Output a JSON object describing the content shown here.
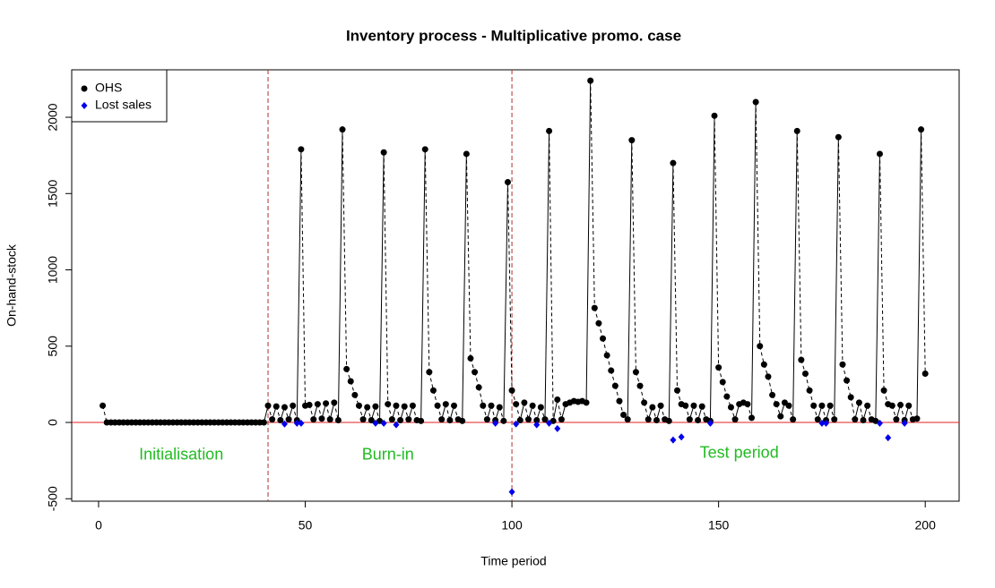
{
  "chart_data": {
    "type": "scatter-line",
    "title": "Inventory process - Multiplicative promo. case",
    "x_label": "Time period",
    "y_label": "On-hand-stock",
    "xlim": [
      -6.5,
      208.2
    ],
    "ylim": [
      -516,
      2311
    ],
    "xticks": [
      0,
      50,
      100,
      150,
      200
    ],
    "yticks": [
      -500,
      0,
      500,
      1000,
      1500,
      2000
    ],
    "hline": 0,
    "vlines": [
      41,
      100
    ],
    "legend_position": "top-left",
    "annotations": [
      {
        "text": "Initialisation",
        "x": 20,
        "y": -215,
        "color": "#22bb22"
      },
      {
        "text": "Burn-in",
        "x": 70,
        "y": -215,
        "color": "#22bb22"
      },
      {
        "text": "Test period",
        "x": 155,
        "y": -205,
        "color": "#22bb22"
      }
    ],
    "series": [
      {
        "name": "OHS",
        "color": "#000000",
        "x": [
          1,
          2,
          3,
          4,
          5,
          6,
          7,
          8,
          9,
          10,
          11,
          12,
          13,
          14,
          15,
          16,
          17,
          18,
          19,
          20,
          21,
          22,
          23,
          24,
          25,
          26,
          27,
          28,
          29,
          30,
          31,
          32,
          33,
          34,
          35,
          36,
          37,
          38,
          39,
          40,
          41,
          42,
          43,
          44,
          45,
          46,
          47,
          48,
          49,
          50,
          51,
          52,
          53,
          54,
          55,
          56,
          57,
          58,
          59,
          60,
          61,
          62,
          63,
          64,
          65,
          66,
          67,
          68,
          69,
          70,
          71,
          72,
          73,
          74,
          75,
          76,
          77,
          78,
          79,
          80,
          81,
          82,
          83,
          84,
          85,
          86,
          87,
          88,
          89,
          90,
          91,
          92,
          93,
          94,
          95,
          96,
          97,
          98,
          99,
          100,
          101,
          102,
          103,
          104,
          105,
          106,
          107,
          108,
          109,
          110,
          111,
          112,
          113,
          114,
          115,
          116,
          117,
          118,
          119,
          120,
          121,
          122,
          123,
          124,
          125,
          126,
          127,
          128,
          129,
          130,
          131,
          132,
          133,
          134,
          135,
          136,
          137,
          138,
          139,
          140,
          141,
          142,
          143,
          144,
          145,
          146,
          147,
          148,
          149,
          150,
          151,
          152,
          153,
          154,
          155,
          156,
          157,
          158,
          159,
          160,
          161,
          162,
          163,
          164,
          165,
          166,
          167,
          168,
          169,
          170,
          171,
          172,
          173,
          174,
          175,
          176,
          177,
          178,
          179,
          180,
          181,
          182,
          183,
          184,
          185,
          186,
          187,
          188,
          189,
          190,
          191,
          192,
          193,
          194,
          195,
          196,
          197,
          198,
          199,
          200
        ],
        "values": [
          110,
          0,
          0,
          0,
          0,
          0,
          0,
          0,
          0,
          0,
          0,
          0,
          0,
          0,
          0,
          0,
          0,
          0,
          0,
          0,
          0,
          0,
          0,
          0,
          0,
          0,
          0,
          0,
          0,
          0,
          0,
          0,
          0,
          0,
          0,
          0,
          0,
          0,
          0,
          0,
          110,
          20,
          105,
          15,
          100,
          20,
          110,
          15,
          1790,
          110,
          115,
          20,
          120,
          25,
          125,
          20,
          130,
          15,
          1920,
          350,
          270,
          180,
          110,
          20,
          100,
          15,
          105,
          10,
          1770,
          120,
          20,
          110,
          15,
          105,
          20,
          110,
          15,
          10,
          1790,
          330,
          210,
          110,
          20,
          120,
          15,
          110,
          20,
          10,
          1760,
          420,
          330,
          230,
          110,
          20,
          110,
          15,
          100,
          10,
          1575,
          210,
          120,
          15,
          130,
          20,
          110,
          15,
          100,
          20,
          1910,
          10,
          150,
          20,
          120,
          130,
          140,
          135,
          140,
          130,
          2240,
          750,
          650,
          550,
          440,
          340,
          240,
          140,
          50,
          20,
          1850,
          330,
          240,
          130,
          20,
          100,
          15,
          110,
          20,
          10,
          1700,
          210,
          120,
          110,
          20,
          110,
          15,
          105,
          20,
          10,
          2010,
          360,
          265,
          170,
          100,
          20,
          120,
          130,
          120,
          30,
          2100,
          500,
          380,
          300,
          180,
          120,
          40,
          130,
          110,
          20,
          1910,
          410,
          320,
          210,
          110,
          20,
          110,
          15,
          110,
          20,
          1870,
          380,
          275,
          165,
          20,
          130,
          15,
          110,
          20,
          10,
          1760,
          210,
          120,
          110,
          20,
          115,
          15,
          110,
          20,
          25,
          1920,
          320
        ]
      },
      {
        "name": "Lost sales",
        "color": "#0000ee",
        "x": [
          45,
          48,
          49,
          67,
          69,
          72,
          96,
          100,
          101,
          106,
          109,
          111,
          139,
          141,
          148,
          175,
          176,
          189,
          191,
          195
        ],
        "values": [
          -10,
          -5,
          -5,
          -5,
          -5,
          -15,
          -5,
          -455,
          -10,
          -15,
          -5,
          -40,
          -115,
          -95,
          -5,
          -5,
          -5,
          -5,
          -100,
          -5
        ]
      }
    ]
  }
}
